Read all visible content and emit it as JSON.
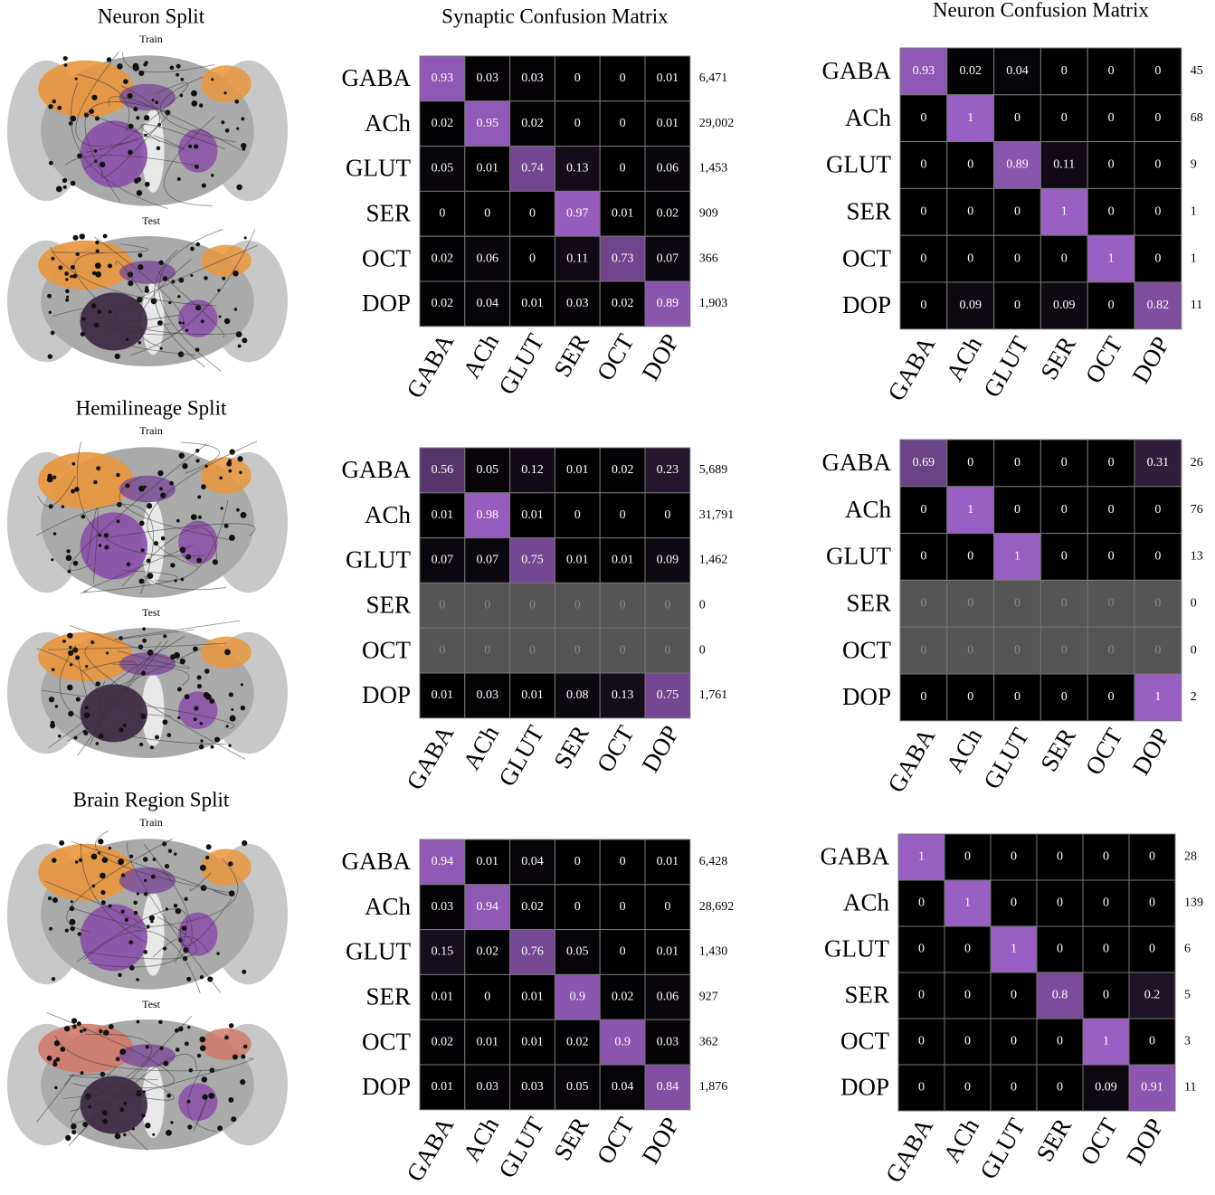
{
  "panels": [
    {
      "title": "Neuron Split",
      "images": [
        "Train",
        "Test"
      ]
    },
    {
      "title": "Hemilineage Split",
      "images": [
        "Train",
        "Test"
      ]
    },
    {
      "title": "Brain Region Split",
      "images": [
        "Train",
        "Test"
      ]
    }
  ],
  "chart_data": [
    {
      "type": "heatmap",
      "title": "Synaptic Confusion Matrix",
      "categories": [
        "GABA",
        "ACh",
        "GLUT",
        "SER",
        "OCT",
        "DOP"
      ],
      "colors": [
        "#000000",
        "#9a5fc2"
      ],
      "values": [
        [
          0.93,
          0.03,
          0.03,
          0,
          0,
          0.01
        ],
        [
          0.02,
          0.95,
          0.02,
          0,
          0,
          0.01
        ],
        [
          0.05,
          0.01,
          0.74,
          0.13,
          0,
          0.06
        ],
        [
          0,
          0,
          0,
          0.97,
          0.01,
          0.02
        ],
        [
          0.02,
          0.06,
          0,
          0.11,
          0.73,
          0.07
        ],
        [
          0.02,
          0.04,
          0.01,
          0.03,
          0.02,
          0.89
        ]
      ],
      "totals": [
        6471,
        29002,
        1453,
        909,
        366,
        1903
      ],
      "total_labels": [
        "6,471",
        "29,002",
        "1,453",
        "909",
        "366",
        "1,903"
      ]
    },
    {
      "type": "heatmap",
      "title": "Neuron Confusion Matrix",
      "categories": [
        "GABA",
        "ACh",
        "GLUT",
        "SER",
        "OCT",
        "DOP"
      ],
      "colors": [
        "#000000",
        "#9a5fc2"
      ],
      "values": [
        [
          0.93,
          0.02,
          0.04,
          0,
          0,
          0
        ],
        [
          0,
          1,
          0,
          0,
          0,
          0
        ],
        [
          0,
          0,
          0.89,
          0.11,
          0,
          0
        ],
        [
          0,
          0,
          0,
          1,
          0,
          0
        ],
        [
          0,
          0,
          0,
          0,
          1,
          0
        ],
        [
          0,
          0.09,
          0,
          0.09,
          0,
          0.82
        ]
      ],
      "totals": [
        45,
        68,
        9,
        1,
        1,
        11
      ],
      "total_labels": [
        "45",
        "68",
        "9",
        "1",
        "1",
        "11"
      ]
    },
    {
      "type": "heatmap",
      "categories": [
        "GABA",
        "ACh",
        "GLUT",
        "SER",
        "OCT",
        "DOP"
      ],
      "colors": [
        "#000000",
        "#9a5fc2"
      ],
      "values": [
        [
          0.56,
          0.05,
          0.12,
          0.01,
          0.02,
          0.23
        ],
        [
          0.01,
          0.98,
          0.01,
          0,
          0,
          0
        ],
        [
          0.07,
          0.07,
          0.75,
          0.01,
          0.01,
          0.09
        ],
        [
          0,
          0,
          0,
          0,
          0,
          0
        ],
        [
          0,
          0,
          0,
          0,
          0,
          0
        ],
        [
          0.01,
          0.03,
          0.01,
          0.08,
          0.13,
          0.75
        ]
      ],
      "totals": [
        5689,
        31791,
        1462,
        0,
        0,
        1761
      ],
      "total_labels": [
        "5,689",
        "31,791",
        "1,462",
        "0",
        "0",
        "1,761"
      ]
    },
    {
      "type": "heatmap",
      "categories": [
        "GABA",
        "ACh",
        "GLUT",
        "SER",
        "OCT",
        "DOP"
      ],
      "colors": [
        "#000000",
        "#9a5fc2"
      ],
      "values": [
        [
          0.69,
          0,
          0,
          0,
          0,
          0.31
        ],
        [
          0,
          1,
          0,
          0,
          0,
          0
        ],
        [
          0,
          0,
          1,
          0,
          0,
          0
        ],
        [
          0,
          0,
          0,
          0,
          0,
          0
        ],
        [
          0,
          0,
          0,
          0,
          0,
          0
        ],
        [
          0,
          0,
          0,
          0,
          0,
          1
        ]
      ],
      "totals": [
        26,
        76,
        13,
        0,
        0,
        2
      ],
      "total_labels": [
        "26",
        "76",
        "13",
        "0",
        "0",
        "2"
      ]
    },
    {
      "type": "heatmap",
      "categories": [
        "GABA",
        "ACh",
        "GLUT",
        "SER",
        "OCT",
        "DOP"
      ],
      "colors": [
        "#000000",
        "#9a5fc2"
      ],
      "values": [
        [
          0.94,
          0.01,
          0.04,
          0,
          0,
          0.01
        ],
        [
          0.03,
          0.94,
          0.02,
          0,
          0,
          0
        ],
        [
          0.15,
          0.02,
          0.76,
          0.05,
          0,
          0.01
        ],
        [
          0.01,
          0,
          0.01,
          0.9,
          0.02,
          0.06
        ],
        [
          0.02,
          0.01,
          0.01,
          0.02,
          0.9,
          0.03
        ],
        [
          0.01,
          0.03,
          0.03,
          0.05,
          0.04,
          0.84
        ]
      ],
      "totals": [
        6428,
        28692,
        1430,
        927,
        362,
        1876
      ],
      "total_labels": [
        "6,428",
        "28,692",
        "1,430",
        "927",
        "362",
        "1,876"
      ]
    },
    {
      "type": "heatmap",
      "categories": [
        "GABA",
        "ACh",
        "GLUT",
        "SER",
        "OCT",
        "DOP"
      ],
      "colors": [
        "#000000",
        "#9a5fc2"
      ],
      "values": [
        [
          1,
          0,
          0,
          0,
          0,
          0
        ],
        [
          0,
          1,
          0,
          0,
          0,
          0
        ],
        [
          0,
          0,
          1,
          0,
          0,
          0
        ],
        [
          0,
          0,
          0,
          0.8,
          0,
          0.2
        ],
        [
          0,
          0,
          0,
          0,
          1,
          0
        ],
        [
          0,
          0,
          0,
          0,
          0.09,
          0.91
        ]
      ],
      "totals": [
        28,
        139,
        6,
        5,
        3,
        11
      ],
      "total_labels": [
        "28",
        "139",
        "6",
        "5",
        "3",
        "11"
      ]
    }
  ]
}
